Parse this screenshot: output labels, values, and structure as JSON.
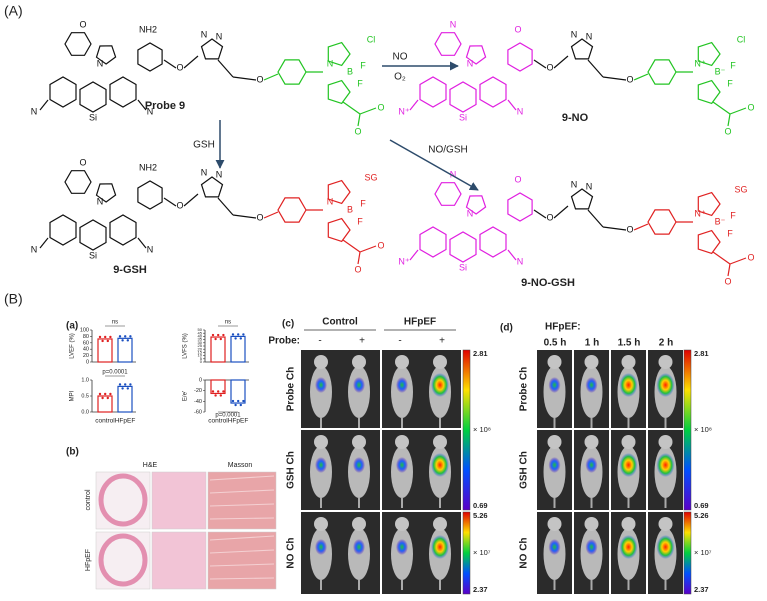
{
  "panel_A": {
    "label": "(A)",
    "molecules": [
      {
        "name": "Probe 9",
        "atoms": [
          "NH2",
          "O",
          "N",
          "N",
          "N",
          "N",
          "Si",
          "N",
          "O",
          "O",
          "Cl",
          "B",
          "F",
          "F",
          "N",
          "O",
          "O"
        ]
      },
      {
        "name": "9-NO",
        "atoms": [
          "O",
          "N",
          "N",
          "N",
          "N",
          "N⁺",
          "Si",
          "N",
          "O",
          "O",
          "Cl",
          "B⁻",
          "F",
          "F",
          "N⁺",
          "O",
          "O"
        ]
      },
      {
        "name": "9-GSH",
        "atoms": [
          "NH2",
          "O",
          "N",
          "N",
          "N",
          "N",
          "Si",
          "N",
          "O",
          "O",
          "SG",
          "B",
          "F",
          "F",
          "N",
          "O",
          "O"
        ]
      },
      {
        "name": "9-NO-GSH",
        "atoms": [
          "O",
          "N",
          "N",
          "N",
          "N",
          "N⁺",
          "Si",
          "N",
          "O",
          "O",
          "SG",
          "B⁻",
          "F",
          "F",
          "N⁺",
          "O",
          "O"
        ]
      }
    ],
    "arrows": [
      {
        "labels": [
          "NO",
          "O₂"
        ]
      },
      {
        "labels": [
          "GSH"
        ]
      },
      {
        "labels": [
          "NO/GSH"
        ]
      }
    ]
  },
  "panel_B": {
    "label": "(B)",
    "a": {
      "label": "(a)",
      "charts": [
        {
          "ylabel": "LVEF (%)",
          "yticks": [
            "0",
            "20",
            "40",
            "60",
            "80",
            "100"
          ],
          "annotation": "ns",
          "categories": []
        },
        {
          "ylabel": "LVFS (%)",
          "yticks": [
            "0",
            "5",
            "10",
            "15",
            "20",
            "25",
            "30",
            "35",
            "40",
            "45",
            "50"
          ],
          "annotation": "ns",
          "categories": []
        },
        {
          "ylabel": "MPI",
          "yticks": [
            "0.0",
            "0.5",
            "1.0"
          ],
          "annotation": "p=0.0001",
          "categories": [
            "control",
            "HFpEF"
          ]
        },
        {
          "ylabel": "E/e'",
          "yticks": [
            "-60",
            "-40",
            "-20",
            "0"
          ],
          "annotation": "p=0.0001",
          "categories": [
            "control",
            "HFpEF"
          ]
        }
      ]
    },
    "b": {
      "label": "(b)",
      "columns": [
        "H&E",
        "Masson"
      ],
      "rows": [
        "control",
        "HFpEF"
      ]
    },
    "c": {
      "label": "(c)",
      "groups": [
        "Control",
        "HFpEF"
      ],
      "probe_label": "Probe:",
      "probe_states": [
        "-",
        "+",
        "-",
        "+"
      ],
      "rows": [
        "Probe Ch",
        "GSH Ch",
        "NO Ch"
      ],
      "colorbars": [
        {
          "max": "2.81",
          "scale": "× 10⁸",
          "min": "0.69"
        },
        {
          "max": "5.26",
          "scale": "× 10⁷",
          "min": "2.37"
        }
      ]
    },
    "d": {
      "label": "(d)",
      "group": "HFpEF:",
      "times": [
        "0.5 h",
        "1 h",
        "1.5 h",
        "2 h"
      ],
      "rows": [
        "Probe Ch",
        "GSH Ch",
        "NO Ch"
      ],
      "colorbars": [
        {
          "max": "2.81",
          "scale": "× 10⁸",
          "min": "0.69"
        },
        {
          "max": "5.26",
          "scale": "× 10⁷",
          "min": "2.37"
        }
      ]
    }
  }
}
